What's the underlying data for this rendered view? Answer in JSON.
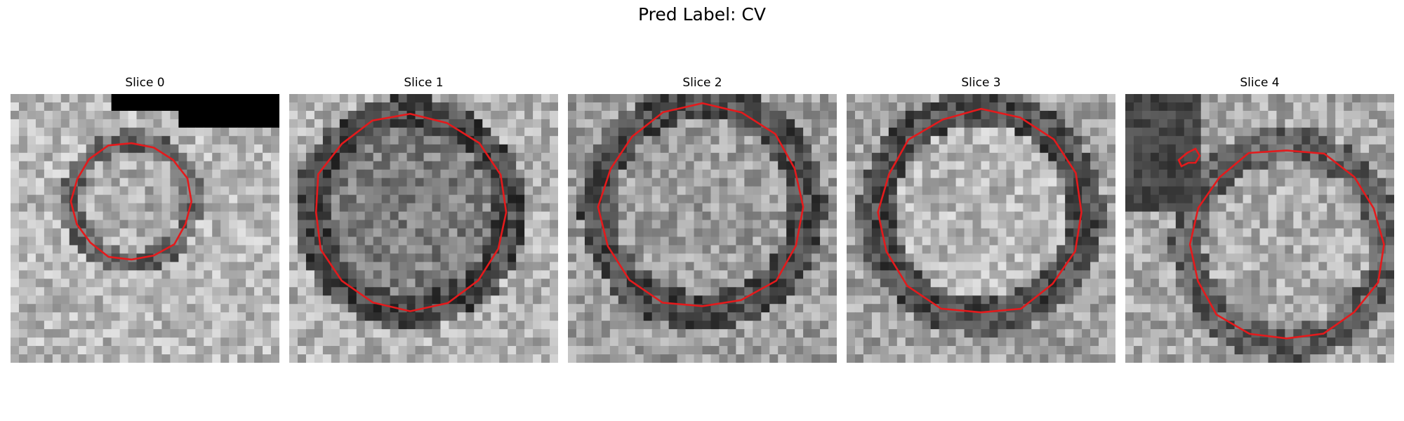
{
  "figure": {
    "title": "Pred Label: CV"
  },
  "slices": [
    {
      "label": "Slice 0",
      "seed": 11,
      "base": 0.72,
      "center": [
        0.45,
        0.4
      ],
      "radius": 0.22,
      "inner": 0.68,
      "ring": 0.4,
      "dark_box": true
    },
    {
      "label": "Slice 1",
      "seed": 23,
      "base": 0.7,
      "center": [
        0.45,
        0.44
      ],
      "radius": 0.36,
      "inner": 0.5,
      "ring": 0.28,
      "dark_box": false
    },
    {
      "label": "Slice 2",
      "seed": 37,
      "base": 0.62,
      "center": [
        0.5,
        0.42
      ],
      "radius": 0.38,
      "inner": 0.62,
      "ring": 0.3,
      "dark_box": false
    },
    {
      "label": "Slice 3",
      "seed": 51,
      "base": 0.64,
      "center": [
        0.5,
        0.44
      ],
      "radius": 0.38,
      "inner": 0.72,
      "ring": 0.3,
      "dark_box": false
    },
    {
      "label": "Slice 4",
      "seed": 67,
      "base": 0.66,
      "center": [
        0.6,
        0.56
      ],
      "radius": 0.36,
      "inner": 0.68,
      "ring": 0.38,
      "dark_box": false
    }
  ],
  "colors": {
    "contour": "#e41a1c"
  }
}
